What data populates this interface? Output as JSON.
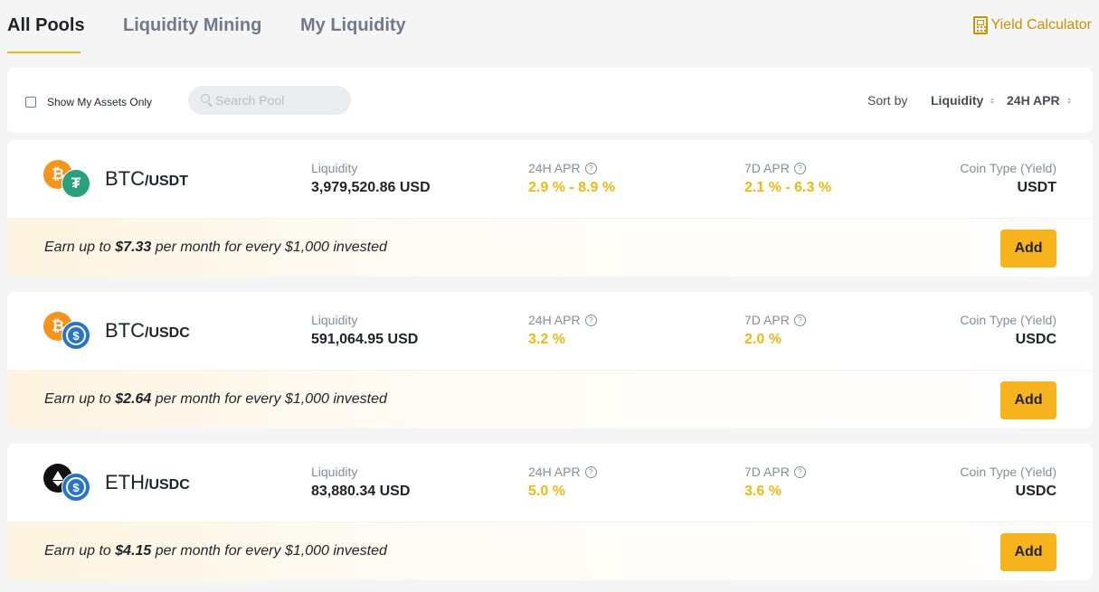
{
  "tabs": [
    {
      "label": "All Pools",
      "active": true
    },
    {
      "label": "Liquidity Mining",
      "active": false
    },
    {
      "label": "My Liquidity",
      "active": false
    }
  ],
  "yield_calculator": {
    "label": "Yield Calculator",
    "icon": "calculator-icon"
  },
  "filters": {
    "show_my_assets_label": "Show My Assets Only",
    "search_placeholder": "Search Pool",
    "sort_by_label": "Sort by",
    "sort_options": [
      "Liquidity",
      "24H APR"
    ]
  },
  "column_labels": {
    "liquidity": "Liquidity",
    "apr_24h": "24H APR",
    "apr_7d": "7D APR",
    "coin_type": "Coin Type (Yield)"
  },
  "pools": [
    {
      "base": "BTC",
      "quote": "/USDT",
      "liquidity": "3,979,520.86 USD",
      "apr_24h": "2.9 % - 8.9 %",
      "apr_7d": "2.1 % - 6.3 %",
      "coin_type": "USDT",
      "earn_prefix": "Earn up to ",
      "earn_amount": "$7.33",
      "earn_suffix": " per month for every $1,000 invested",
      "add_label": "Add"
    },
    {
      "base": "BTC",
      "quote": "/USDC",
      "liquidity": "591,064.95 USD",
      "apr_24h": "3.2 %",
      "apr_7d": "2.0 %",
      "coin_type": "USDC",
      "earn_prefix": "Earn up to ",
      "earn_amount": "$2.64",
      "earn_suffix": " per month for every $1,000 invested",
      "add_label": "Add"
    },
    {
      "base": "ETH",
      "quote": "/USDC",
      "liquidity": "83,880.34 USD",
      "apr_24h": "5.0 %",
      "apr_7d": "3.6 %",
      "coin_type": "USDC",
      "earn_prefix": "Earn up to ",
      "earn_amount": "$4.15",
      "earn_suffix": " per month for every $1,000 invested",
      "add_label": "Add"
    }
  ],
  "colors": {
    "accent": "#f0b90b",
    "button": "#f8b41c",
    "link": "#c99400"
  }
}
